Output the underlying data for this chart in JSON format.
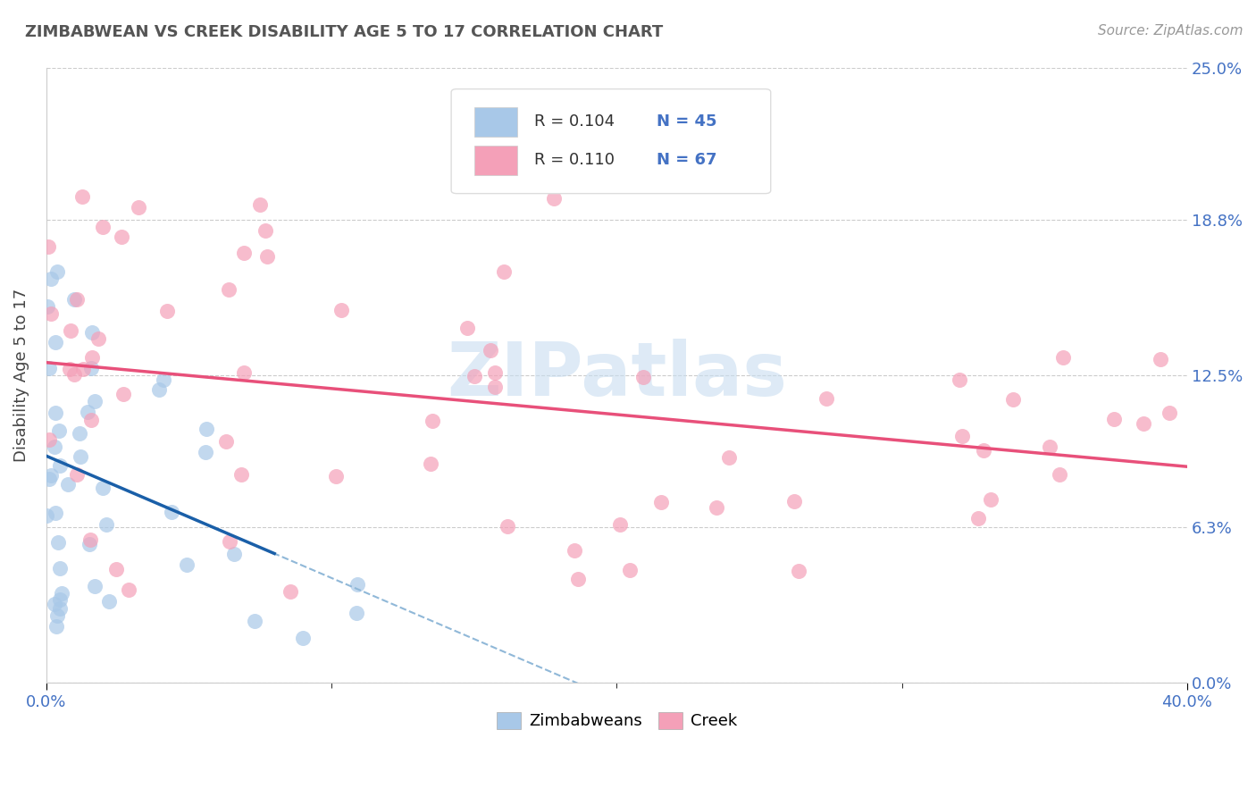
{
  "title": "ZIMBABWEAN VS CREEK DISABILITY AGE 5 TO 17 CORRELATION CHART",
  "source": "Source: ZipAtlas.com",
  "ylabel": "Disability Age 5 to 17",
  "xlim": [
    0.0,
    0.4
  ],
  "ylim": [
    0.0,
    0.25
  ],
  "xtick_positions": [
    0.0,
    0.4
  ],
  "xtick_labels": [
    "0.0%",
    "40.0%"
  ],
  "ytick_positions": [
    0.0,
    0.063,
    0.125,
    0.188,
    0.25
  ],
  "ytick_labels_right": [
    "0.0%",
    "6.3%",
    "12.5%",
    "18.8%",
    "25.0%"
  ],
  "legend_r1": "R = 0.104",
  "legend_n1": "N = 45",
  "legend_r2": "R = 0.110",
  "legend_n2": "N = 67",
  "color_zimbabwean": "#a8c8e8",
  "color_creek": "#f4a0b8",
  "color_trend_zimbabwean_solid": "#1a5fa8",
  "color_trend_zimbabwean_dashed": "#90b8d8",
  "color_trend_creek": "#e8507a",
  "color_legend_text_blue": "#4472c4",
  "background_color": "#ffffff",
  "grid_color": "#cccccc",
  "watermark_text": "ZIPatlas",
  "watermark_color": "#c8ddf0",
  "zimbabwean_seed": 12345,
  "creek_seed": 54321
}
